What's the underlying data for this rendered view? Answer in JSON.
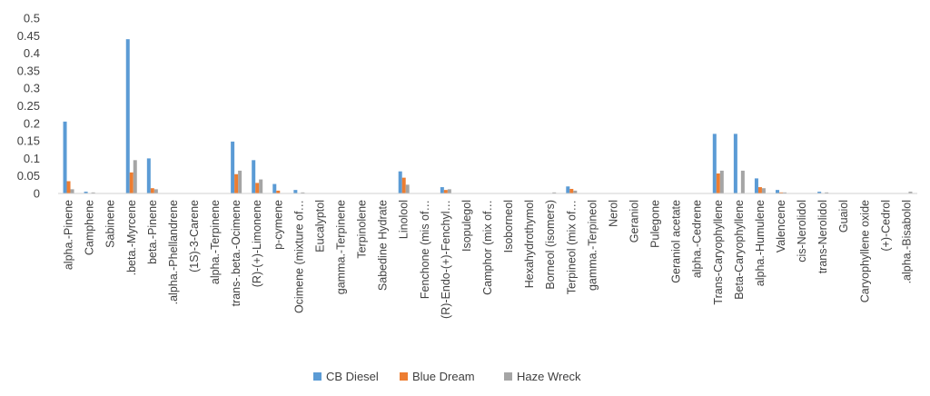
{
  "chart_data": {
    "type": "bar",
    "title": "",
    "xlabel": "",
    "ylabel": "",
    "ylim": [
      0,
      0.5
    ],
    "yticks": [
      "0",
      "0.05",
      "0.1",
      "0.15",
      "0.2",
      "0.25",
      "0.3",
      "0.35",
      "0.4",
      "0.45",
      "0.5"
    ],
    "grid": false,
    "legend_position": "bottom",
    "categories": [
      "alpha.-Pinene",
      "Camphene",
      "Sabinene",
      ".beta.-Myrcene",
      "beta.-Pinene",
      ".alpha.-Phellandrene",
      "(1S)-3-Carene",
      "alpha.-Terpinene",
      "trans-.beta.-Ocimene",
      "(R)-(+)-Limonene",
      "p-cymene",
      "Ocimene (mixture of…",
      "Eucalyptol",
      "gamma.-Terpinene",
      "Terpinolene",
      "Sabedine Hydrate",
      "Linolool",
      "Fenchone (mis of…",
      "(R)-Endo-(+)-Fenchyl…",
      "Isopulegol",
      "Camphor (mix of…",
      "Isoborneol",
      "Hexahydrothymol",
      "Borneol (isomers)",
      "Terpineol (mix of…",
      "gamma.-Terpineol",
      "Nerol",
      "Geraniol",
      "Pulegone",
      "Geraniol acetate",
      "alpha.-Cedrene",
      "Trans-Caryophyllene",
      "Beta-Caryophyllene",
      "alpha.-Humulene",
      "Valencene",
      "cis-Nerolidol",
      "trans-Nerolidol",
      "Guaiol",
      "Caryophyllene oxide",
      "(+)-Cedrol",
      ".alpha.-Bisabolol"
    ],
    "series": [
      {
        "name": "CB Diesel",
        "color": "#5B9BD5",
        "values": [
          0.205,
          0.005,
          0,
          0.44,
          0.1,
          0,
          0,
          0,
          0.148,
          0.095,
          0.027,
          0.01,
          0,
          0,
          0,
          0,
          0.063,
          0,
          0.018,
          0,
          0,
          0,
          0,
          0,
          0.02,
          0,
          0,
          0,
          0,
          0,
          0,
          0.17,
          0.17,
          0.043,
          0.01,
          0,
          0.005,
          0,
          0,
          0,
          0
        ]
      },
      {
        "name": "Blue Dream",
        "color": "#ED7D31",
        "values": [
          0.035,
          0,
          0,
          0.06,
          0.015,
          0,
          0,
          0,
          0.055,
          0.03,
          0.008,
          0,
          0,
          0,
          0,
          0,
          0.045,
          0,
          0.01,
          0,
          0,
          0,
          0,
          0,
          0.013,
          0,
          0,
          0,
          0,
          0,
          0,
          0.057,
          0,
          0.018,
          0.003,
          0,
          0,
          0,
          0,
          0,
          0
        ]
      },
      {
        "name": "Haze Wreck",
        "color": "#A5A5A5",
        "values": [
          0.012,
          0.003,
          0,
          0.095,
          0.012,
          0,
          0,
          0,
          0.065,
          0.04,
          0,
          0.003,
          0,
          0,
          0,
          0,
          0.025,
          0,
          0.012,
          0,
          0,
          0,
          0,
          0.003,
          0.008,
          0,
          0,
          0,
          0,
          0,
          0,
          0.065,
          0.065,
          0.015,
          0.003,
          0,
          0.003,
          0,
          0,
          0,
          0.005
        ]
      }
    ]
  }
}
